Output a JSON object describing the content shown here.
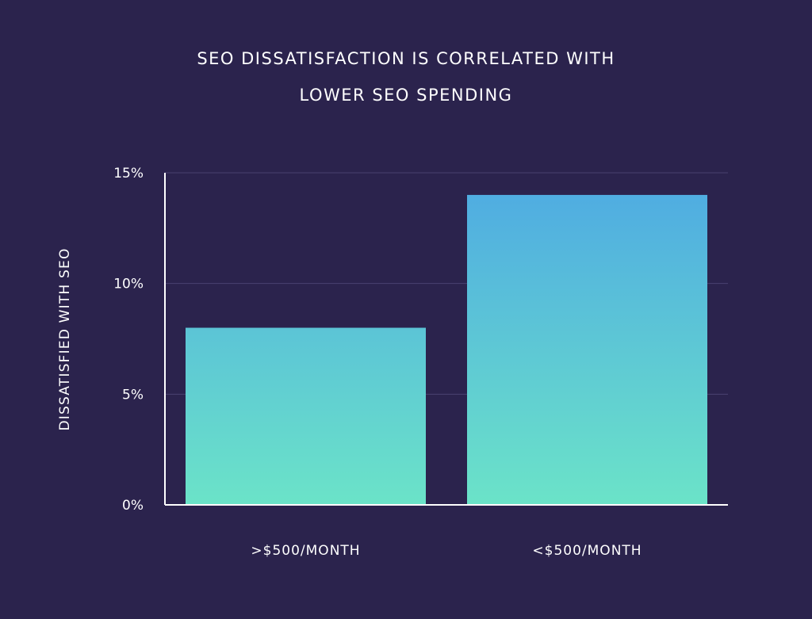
{
  "chart_data": {
    "type": "bar",
    "title_lines": [
      "SEO DISSATISFACTION IS CORRELATED WITH",
      "LOWER SEO SPENDING"
    ],
    "categories": [
      ">$500/MONTH",
      "<$500/MONTH"
    ],
    "values": [
      8,
      14
    ],
    "ylabel": "DISSATISFIED WITH SEO",
    "xlabel": "",
    "ylim": [
      0,
      15
    ],
    "yticks": [
      0,
      5,
      10,
      15
    ],
    "ytick_labels": [
      "0%",
      "5%",
      "10%",
      "15%"
    ],
    "grid": true,
    "colors": {
      "background": "#2b234d",
      "bar_top": "#4ea9e3",
      "bar_bottom": "#6be3c8",
      "gridline": "#4a4270",
      "axis": "#ffffff",
      "text": "#ffffff"
    }
  }
}
